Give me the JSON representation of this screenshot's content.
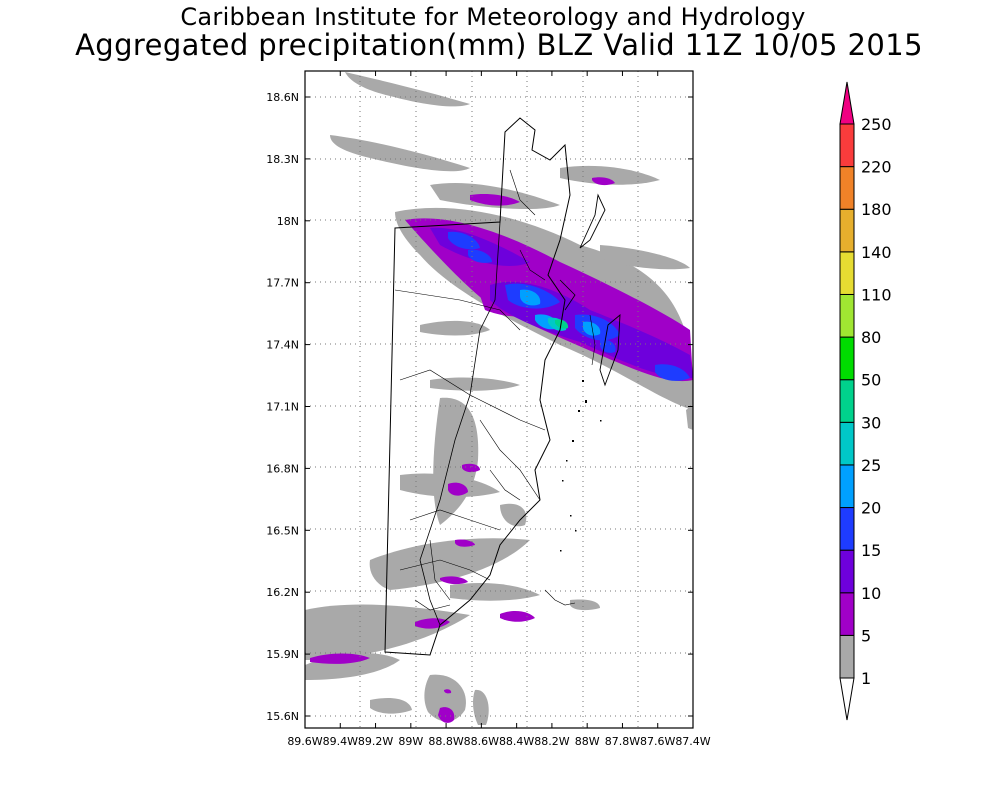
{
  "title": {
    "line1": "Caribbean Institute for Meteorology and Hydrology",
    "line2": "Aggregated precipitation(mm) BLZ Valid 11Z 10/05 2015"
  },
  "map": {
    "lat_ticks": [
      "18.6N",
      "18.3N",
      "18N",
      "17.7N",
      "17.4N",
      "17.1N",
      "16.8N",
      "16.5N",
      "16.2N",
      "15.9N",
      "15.6N"
    ],
    "lon_ticks": [
      "89.6W",
      "89.4W",
      "89.2W",
      "89W",
      "88.8W",
      "88.6W",
      "88.4W",
      "88.2W",
      "88W",
      "87.8W",
      "87.6W",
      "87.4W"
    ],
    "lat_range": [
      15.5,
      18.7
    ],
    "lon_range": [
      -89.6,
      -87.4
    ],
    "grid": "dotted"
  },
  "colorbar": {
    "levels": [
      "1",
      "5",
      "10",
      "15",
      "20",
      "25",
      "30",
      "50",
      "80",
      "110",
      "140",
      "180",
      "220",
      "250"
    ],
    "colors": [
      "#a9a9a9",
      "#a000c8",
      "#6e00dc",
      "#1e3cff",
      "#00a0ff",
      "#00c8c8",
      "#00d28c",
      "#00dc00",
      "#a0e632",
      "#e6dc32",
      "#e6af2d",
      "#f08228",
      "#fa3c3c",
      "#f00082"
    ]
  }
}
